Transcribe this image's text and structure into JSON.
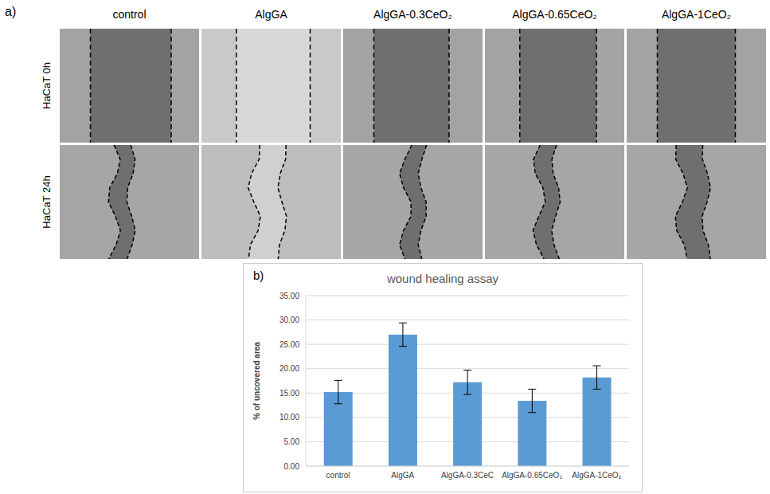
{
  "panel_a": {
    "label": "a)",
    "columns": [
      "control",
      "AlgGA",
      "AlgGA-0.3CeO₂",
      "AlgGA-0.65CeO₂",
      "AlgGA-1CeO₂"
    ],
    "rows": [
      "HaCaT 0h",
      "HaCaT 24h"
    ]
  },
  "panel_b": {
    "label": "b)"
  },
  "chart_data": {
    "type": "bar",
    "title": "wound healing assay",
    "y_label": "% of uncovered area",
    "categories": [
      "control",
      "AlgGA",
      "AlgGA-0.3CeC",
      "AlgGA-0.65CeO₂",
      "AlgGA-1CeO₂"
    ],
    "values": [
      15.2,
      27.0,
      17.2,
      13.4,
      18.2
    ],
    "errors": [
      2.4,
      2.4,
      2.5,
      2.4,
      2.4
    ],
    "color": "#5b9bd5",
    "ylim": [
      0,
      35
    ],
    "yticks": [
      {
        "value": 0,
        "label": "0.00"
      },
      {
        "value": 5,
        "label": "5.00"
      },
      {
        "value": 10,
        "label": "10.00"
      },
      {
        "value": 15,
        "label": "15.00"
      },
      {
        "value": 20,
        "label": "20.00"
      },
      {
        "value": 25,
        "label": "25.00"
      },
      {
        "value": 30,
        "label": "30.00"
      },
      {
        "value": 35,
        "label": "35.00"
      }
    ],
    "grid": true
  }
}
